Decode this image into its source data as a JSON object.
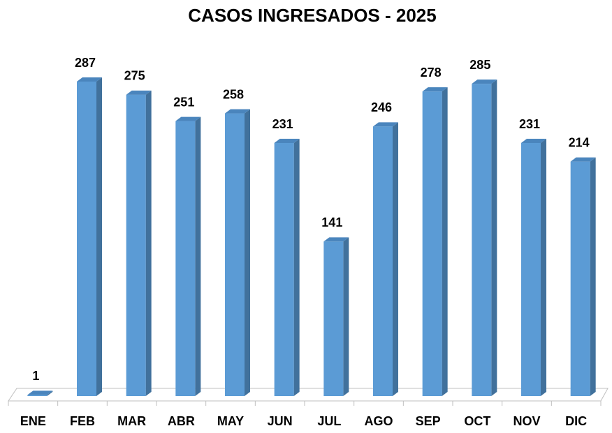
{
  "chart_data": {
    "type": "bar",
    "title": "CASOS INGRESADOS - 2025",
    "categories": [
      "ENE",
      "FEB",
      "MAR",
      "ABR",
      "MAY",
      "JUN",
      "JUL",
      "AGO",
      "SEP",
      "OCT",
      "NOV",
      "DIC"
    ],
    "values": [
      1,
      287,
      275,
      251,
      258,
      231,
      141,
      246,
      278,
      285,
      231,
      214
    ],
    "color": "#5b9bd5"
  }
}
